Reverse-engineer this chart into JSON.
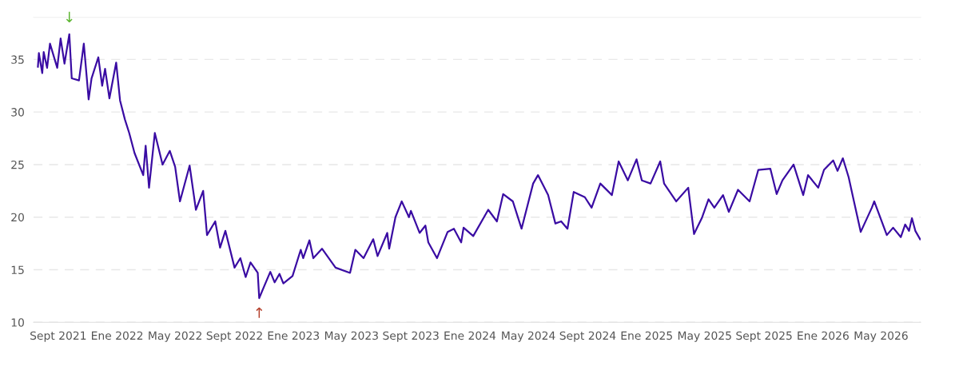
{
  "chart_data": {
    "type": "line",
    "color": "#3a0ca3",
    "grid": "y",
    "line_style": "solid",
    "marker": "none",
    "xlim": [
      "2021-07-12",
      "2026-07-22"
    ],
    "ylim": [
      10,
      39
    ],
    "yticks": [
      10,
      15,
      20,
      25,
      30,
      35
    ],
    "xticks": [
      {
        "value": "2021-09-01",
        "label": "Sept 2021"
      },
      {
        "value": "2022-01-01",
        "label": "Ene 2022"
      },
      {
        "value": "2022-05-01",
        "label": "May 2022"
      },
      {
        "value": "2022-09-01",
        "label": "Sept 2022"
      },
      {
        "value": "2023-01-01",
        "label": "Ene 2023"
      },
      {
        "value": "2023-05-01",
        "label": "May 2023"
      },
      {
        "value": "2023-09-01",
        "label": "Sept 2023"
      },
      {
        "value": "2024-01-01",
        "label": "Ene 2024"
      },
      {
        "value": "2024-05-01",
        "label": "May 2024"
      },
      {
        "value": "2024-09-01",
        "label": "Sept 2024"
      },
      {
        "value": "2025-01-01",
        "label": "Ene 2025"
      },
      {
        "value": "2025-05-01",
        "label": "May 2025"
      },
      {
        "value": "2025-09-01",
        "label": "Sept 2025"
      },
      {
        "value": "2026-01-01",
        "label": "Ene 2026"
      },
      {
        "value": "2026-05-01",
        "label": "May 2026"
      }
    ],
    "annotations": [
      {
        "text": "↓",
        "x": "2021-09-24",
        "y": 37.4
      },
      {
        "text": "↑",
        "x": "2022-10-22",
        "y": 12.3
      }
    ],
    "x": [
      "2021-07-21",
      "2021-07-23",
      "2021-07-30",
      "2021-08-02",
      "2021-08-09",
      "2021-08-15",
      "2021-08-30",
      "2021-09-06",
      "2021-09-14",
      "2021-09-24",
      "2021-09-29",
      "2021-10-14",
      "2021-10-24",
      "2021-11-03",
      "2021-11-09",
      "2021-11-23",
      "2021-12-01",
      "2021-12-07",
      "2021-12-16",
      "2021-12-30",
      "2022-01-07",
      "2022-01-17",
      "2022-01-26",
      "2022-02-06",
      "2022-02-24",
      "2022-03-01",
      "2022-03-08",
      "2022-03-20",
      "2022-04-05",
      "2022-04-20",
      "2022-05-01",
      "2022-05-11",
      "2022-05-31",
      "2022-06-13",
      "2022-06-28",
      "2022-07-06",
      "2022-07-23",
      "2022-08-02",
      "2022-08-13",
      "2022-09-01",
      "2022-09-13",
      "2022-09-24",
      "2022-10-04",
      "2022-10-19",
      "2022-10-22",
      "2022-11-01",
      "2022-11-14",
      "2022-11-23",
      "2022-12-03",
      "2022-12-11",
      "2022-12-30",
      "2023-01-16",
      "2023-01-21",
      "2023-02-03",
      "2023-02-11",
      "2023-03-01",
      "2023-03-29",
      "2023-04-28",
      "2023-05-09",
      "2023-05-26",
      "2023-06-15",
      "2023-06-24",
      "2023-07-14",
      "2023-07-18",
      "2023-07-31",
      "2023-08-13",
      "2023-08-28",
      "2023-09-01",
      "2023-09-19",
      "2023-10-01",
      "2023-10-07",
      "2023-10-25",
      "2023-11-16",
      "2023-11-29",
      "2023-12-14",
      "2023-12-19",
      "2024-01-08",
      "2024-02-08",
      "2024-02-26",
      "2024-03-10",
      "2024-03-30",
      "2024-04-17",
      "2024-05-11",
      "2024-05-21",
      "2024-06-11",
      "2024-06-26",
      "2024-07-08",
      "2024-07-21",
      "2024-08-03",
      "2024-08-26",
      "2024-09-09",
      "2024-09-27",
      "2024-10-21",
      "2024-11-04",
      "2024-11-23",
      "2024-12-11",
      "2024-12-22",
      "2025-01-09",
      "2025-01-29",
      "2025-02-06",
      "2025-03-03",
      "2025-03-28",
      "2025-04-09",
      "2025-04-25",
      "2025-05-09",
      "2025-05-21",
      "2025-06-08",
      "2025-06-20",
      "2025-07-09",
      "2025-08-02",
      "2025-08-20",
      "2025-09-14",
      "2025-09-27",
      "2025-10-09",
      "2025-11-01",
      "2025-11-21",
      "2025-12-01",
      "2025-12-22",
      "2026-01-03",
      "2026-01-22",
      "2026-01-31",
      "2026-02-11",
      "2026-02-23",
      "2026-03-06",
      "2026-03-20",
      "2026-04-12",
      "2026-04-17",
      "2026-05-13",
      "2026-05-26",
      "2026-06-11",
      "2026-06-20",
      "2026-06-28",
      "2026-07-04",
      "2026-07-11",
      "2026-07-21"
    ],
    "values": [
      34.3,
      35.6,
      33.7,
      35.7,
      34.2,
      36.5,
      34.2,
      37.0,
      34.6,
      37.4,
      33.2,
      33.0,
      36.5,
      31.2,
      33.2,
      35.2,
      32.5,
      34.1,
      31.3,
      34.7,
      31.1,
      29.3,
      28.0,
      26.1,
      24.0,
      26.8,
      22.8,
      28.0,
      25.0,
      26.3,
      24.8,
      21.5,
      24.9,
      20.7,
      22.5,
      18.3,
      19.6,
      17.1,
      18.7,
      15.2,
      16.1,
      14.3,
      15.7,
      14.7,
      12.3,
      13.4,
      14.8,
      13.8,
      14.6,
      13.7,
      14.4,
      16.9,
      16.1,
      17.8,
      16.1,
      17.0,
      15.2,
      14.7,
      16.9,
      16.1,
      17.9,
      16.3,
      18.5,
      17.0,
      20.0,
      21.5,
      20.0,
      20.6,
      18.5,
      19.2,
      17.6,
      16.1,
      18.6,
      18.9,
      17.6,
      19.0,
      18.2,
      20.7,
      19.6,
      22.2,
      21.5,
      18.9,
      23.2,
      24.0,
      22.1,
      19.4,
      19.6,
      18.9,
      22.4,
      21.9,
      20.9,
      23.2,
      22.1,
      25.3,
      23.5,
      25.5,
      23.5,
      23.2,
      25.3,
      23.2,
      21.5,
      22.8,
      18.4,
      19.9,
      21.7,
      20.9,
      22.1,
      20.5,
      22.6,
      21.5,
      24.5,
      24.6,
      22.2,
      23.5,
      25.0,
      22.1,
      24.0,
      22.8,
      24.5,
      25.4,
      24.4,
      25.6,
      23.8,
      21.5,
      18.6,
      20.9,
      21.5,
      18.3,
      19.0,
      18.1,
      19.3,
      18.7,
      19.9,
      18.7,
      17.9
    ]
  }
}
